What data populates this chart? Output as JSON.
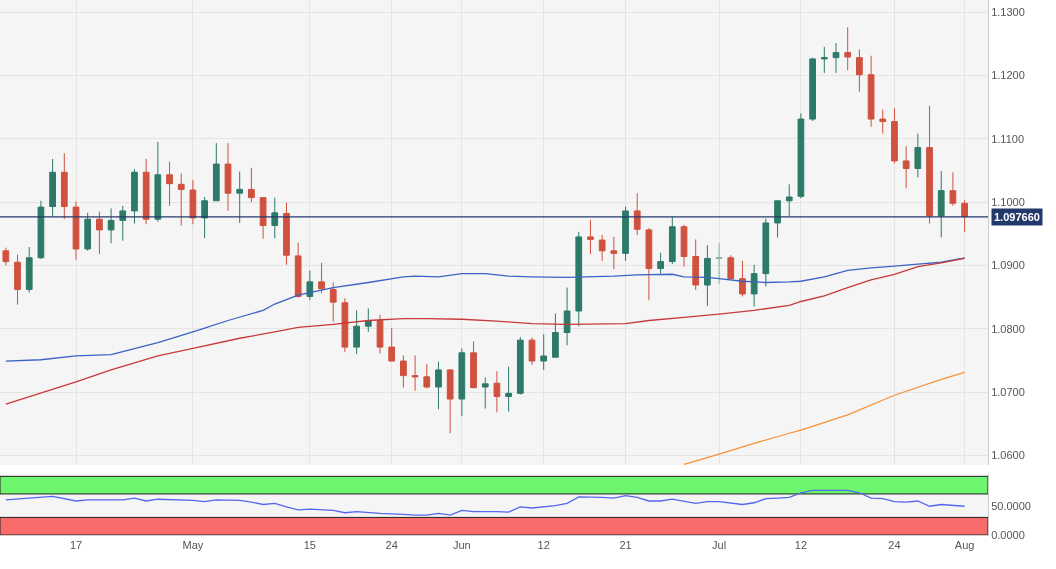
{
  "chart_data": [
    {
      "type": "candlestick",
      "categories": [
        null,
        null,
        null,
        null,
        null,
        null,
        "17",
        null,
        null,
        null,
        null,
        null,
        null,
        null,
        null,
        null,
        "May",
        null,
        null,
        null,
        null,
        null,
        null,
        null,
        null,
        null,
        "15",
        null,
        null,
        null,
        null,
        null,
        null,
        "24",
        null,
        null,
        null,
        null,
        null,
        "Jun",
        null,
        null,
        null,
        null,
        null,
        null,
        "12",
        null,
        null,
        null,
        null,
        null,
        null,
        "21",
        null,
        null,
        null,
        null,
        null,
        null,
        null,
        "Jul",
        null,
        null,
        null,
        null,
        null,
        null,
        "12",
        null,
        null,
        null,
        null,
        null,
        null,
        null,
        "24",
        null,
        null,
        null,
        null,
        null,
        "Aug"
      ],
      "ohlc": [
        [
          1.0923,
          1.0928,
          1.09,
          1.0906
        ],
        [
          1.0905,
          1.0917,
          1.0838,
          1.0862
        ],
        [
          1.0862,
          1.0929,
          1.0857,
          1.0912
        ],
        [
          1.0912,
          1.1002,
          1.091,
          1.0992
        ],
        [
          1.0993,
          1.1068,
          1.0978,
          1.1047
        ],
        [
          1.1047,
          1.1077,
          1.0973,
          1.0993
        ],
        [
          1.0992,
          1.1001,
          1.0909,
          1.0926
        ],
        [
          1.0926,
          1.0983,
          1.0923,
          1.0973
        ],
        [
          1.0973,
          1.0985,
          1.0918,
          1.0956
        ],
        [
          1.0956,
          1.099,
          1.0935,
          1.0971
        ],
        [
          1.0971,
          1.0994,
          1.0939,
          1.0986
        ],
        [
          1.0986,
          1.1052,
          1.0966,
          1.1047
        ],
        [
          1.1047,
          1.1068,
          1.0965,
          1.0973
        ],
        [
          1.0973,
          1.1095,
          1.0969,
          1.1043
        ],
        [
          1.1043,
          1.1064,
          1.0994,
          1.1029
        ],
        [
          1.1028,
          1.1045,
          1.0963,
          1.102
        ],
        [
          1.1019,
          1.1035,
          1.0965,
          1.0975
        ],
        [
          1.0975,
          1.1008,
          1.0943,
          1.1002
        ],
        [
          1.1002,
          1.1093,
          1.1002,
          1.106
        ],
        [
          1.106,
          1.1093,
          1.0986,
          1.1014
        ],
        [
          1.1014,
          1.1048,
          1.0967,
          1.102
        ],
        [
          1.102,
          1.1054,
          1.1,
          1.1007
        ],
        [
          1.1007,
          1.1007,
          1.0942,
          1.0963
        ],
        [
          1.0963,
          1.1007,
          1.0943,
          1.0983
        ],
        [
          1.0982,
          1.0999,
          1.0901,
          1.0916
        ],
        [
          1.0915,
          1.0936,
          1.0849,
          1.0851
        ],
        [
          1.0851,
          1.0892,
          1.0845,
          1.0874
        ],
        [
          1.0874,
          1.0904,
          1.0856,
          1.0863
        ],
        [
          1.0862,
          1.0873,
          1.0811,
          1.0842
        ],
        [
          1.0841,
          1.0848,
          1.0763,
          1.0771
        ],
        [
          1.0771,
          1.0829,
          1.076,
          1.0804
        ],
        [
          1.0804,
          1.0832,
          1.0795,
          1.0813
        ],
        [
          1.0813,
          1.0822,
          1.0761,
          1.0771
        ],
        [
          1.0771,
          1.0801,
          1.0749,
          1.0749
        ],
        [
          1.0749,
          1.0758,
          1.0707,
          1.0726
        ],
        [
          1.0726,
          1.0758,
          1.0702,
          1.0724
        ],
        [
          1.0724,
          1.0744,
          1.0706,
          1.0708
        ],
        [
          1.0708,
          1.0748,
          1.0673,
          1.0735
        ],
        [
          1.0735,
          1.0736,
          1.0635,
          1.0689
        ],
        [
          1.0689,
          1.0769,
          1.0662,
          1.0762
        ],
        [
          1.0762,
          1.078,
          1.0706,
          1.0707
        ],
        [
          1.0708,
          1.0723,
          1.0674,
          1.0713
        ],
        [
          1.0714,
          1.0733,
          1.0668,
          1.0693
        ],
        [
          1.0693,
          1.074,
          1.0669,
          1.0698
        ],
        [
          1.0698,
          1.0787,
          1.0696,
          1.0782
        ],
        [
          1.0782,
          1.0786,
          1.0743,
          1.0749
        ],
        [
          1.0749,
          1.0791,
          1.0735,
          1.0757
        ],
        [
          1.0755,
          1.0824,
          1.0755,
          1.0794
        ],
        [
          1.0794,
          1.0865,
          1.0774,
          1.0828
        ],
        [
          1.0828,
          1.0953,
          1.0804,
          1.0945
        ],
        [
          1.0945,
          1.0972,
          1.0918,
          1.0941
        ],
        [
          1.094,
          1.0948,
          1.0907,
          1.0923
        ],
        [
          1.0923,
          1.0945,
          1.0894,
          1.0919
        ],
        [
          1.0919,
          1.0993,
          1.0907,
          1.0986
        ],
        [
          1.0986,
          1.1014,
          1.0948,
          1.0957
        ],
        [
          1.0956,
          1.0959,
          1.0845,
          1.0895
        ],
        [
          1.0895,
          1.092,
          1.0887,
          1.0906
        ],
        [
          1.0906,
          1.0977,
          1.0902,
          1.0961
        ],
        [
          1.0961,
          1.0964,
          1.0898,
          1.0914
        ],
        [
          1.0914,
          1.0941,
          1.0861,
          1.0869
        ],
        [
          1.0869,
          1.0932,
          1.0836,
          1.0911
        ],
        [
          1.0911,
          1.0935,
          1.0871,
          1.0912
        ],
        [
          1.0912,
          1.0916,
          1.0879,
          1.0879
        ],
        [
          1.0879,
          1.0907,
          1.0851,
          1.0855
        ],
        [
          1.0855,
          1.0901,
          1.0835,
          1.0887
        ],
        [
          1.0887,
          1.0974,
          1.0867,
          1.0967
        ],
        [
          1.0967,
          1.1002,
          1.0944,
          1.1002
        ],
        [
          1.1002,
          1.1028,
          1.0977,
          1.1008
        ],
        [
          1.1009,
          1.114,
          1.1006,
          1.1131
        ],
        [
          1.1131,
          1.1228,
          1.1128,
          1.1226
        ],
        [
          1.1226,
          1.1245,
          1.1204,
          1.1228
        ],
        [
          1.1228,
          1.1251,
          1.1204,
          1.1236
        ],
        [
          1.1236,
          1.1276,
          1.1208,
          1.1229
        ],
        [
          1.1228,
          1.1241,
          1.1174,
          1.1201
        ],
        [
          1.1201,
          1.1231,
          1.1119,
          1.1131
        ],
        [
          1.1131,
          1.1146,
          1.1108,
          1.1127
        ],
        [
          1.1127,
          1.1148,
          1.1061,
          1.1065
        ],
        [
          1.1065,
          1.1088,
          1.1022,
          1.1053
        ],
        [
          1.1053,
          1.1108,
          1.1039,
          1.1086
        ],
        [
          1.1086,
          1.1152,
          1.0966,
          1.0978
        ],
        [
          1.0978,
          1.1049,
          1.0944,
          1.1018
        ],
        [
          1.1018,
          1.1047,
          1.0994,
          1.0998
        ],
        [
          1.0998,
          1.1003,
          1.0953,
          1.0977
        ]
      ],
      "colors": [
        "#cf513e",
        "#cf513e",
        "#2d7a69",
        "#2d7a69",
        "#2d7a69",
        "#cf513e",
        "#cf513e",
        "#2d7a69",
        "#cf513e",
        "#2d7a69",
        "#2d7a69",
        "#2d7a69",
        "#cf513e",
        "#2d7a69",
        "#cf513e",
        "#cf513e",
        "#cf513e",
        "#2d7a69",
        "#2d7a69",
        "#cf513e",
        "#2d7a69",
        "#cf513e",
        "#cf513e",
        "#2d7a69",
        "#cf513e",
        "#cf513e",
        "#2d7a69",
        "#cf513e",
        "#cf513e",
        "#cf513e",
        "#2d7a69",
        "#2d7a69",
        "#cf513e",
        "#cf513e",
        "#cf513e",
        "#cf513e",
        "#cf513e",
        "#2d7a69",
        "#cf513e",
        "#2d7a69",
        "#cf513e",
        "#2d7a69",
        "#cf513e",
        "#2d7a69",
        "#2d7a69",
        "#cf513e",
        "#2d7a69",
        "#2d7a69",
        "#2d7a69",
        "#2d7a69",
        "#cf513e",
        "#cf513e",
        "#cf513e",
        "#2d7a69",
        "#cf513e",
        "#cf513e",
        "#2d7a69",
        "#2d7a69",
        "#cf513e",
        "#cf513e",
        "#2d7a69",
        "#7fb5a5",
        "#cf513e",
        "#cf513e",
        "#2d7a69",
        "#2d7a69",
        "#2d7a69",
        "#2d7a69",
        "#2d7a69",
        "#2d7a69",
        "#2d7a69",
        "#2d7a69",
        "#cf513e",
        "#cf513e",
        "#cf513e",
        "#cf513e",
        "#cf513e",
        "#cf513e",
        "#2d7a69",
        "#cf513e",
        "#2d7a69",
        "#cf513e",
        "#cf513e"
      ],
      "series": [
        {
          "type": "line",
          "color": "#3b63c4",
          "values": [
            1.0749,
            null,
            null,
            1.0751,
            null,
            null,
            1.0757,
            null,
            null,
            1.0759,
            1.0764,
            null,
            null,
            1.0778,
            null,
            null,
            1.0795,
            1.0801,
            null,
            1.0813,
            null,
            null,
            1.0829,
            1.0839,
            null,
            1.0853,
            null,
            null,
            1.0865,
            null,
            null,
            1.0873,
            null,
            null,
            1.0882,
            1.0883,
            null,
            1.0882,
            null,
            1.0887,
            null,
            1.0887,
            null,
            1.0883,
            null,
            1.0882,
            null,
            null,
            1.0881,
            null,
            null,
            null,
            1.0883,
            null,
            1.0885,
            null,
            null,
            1.0886,
            1.0882,
            null,
            1.0881,
            1.0879,
            null,
            1.0875,
            null,
            1.0873,
            null,
            1.0874,
            1.0875,
            null,
            1.0882,
            null,
            1.0892,
            null,
            1.0896,
            null,
            1.0899,
            null,
            1.0902,
            null,
            1.0905,
            null,
            1.0912
          ]
        },
        {
          "type": "line",
          "color": "#c8393a",
          "values": [
            1.0681,
            null,
            null,
            null,
            null,
            null,
            1.0716,
            null,
            null,
            1.0735,
            null,
            null,
            null,
            1.0757,
            null,
            null,
            1.0769,
            null,
            null,
            null,
            1.0785,
            null,
            null,
            1.0795,
            null,
            1.0802,
            null,
            null,
            1.0807,
            null,
            null,
            1.0813,
            null,
            null,
            1.0816,
            null,
            1.0816,
            null,
            null,
            1.0815,
            null,
            null,
            1.0812,
            null,
            null,
            1.0808,
            null,
            null,
            1.0807,
            null,
            null,
            null,
            null,
            1.0808,
            null,
            1.0813,
            null,
            null,
            1.0818,
            null,
            null,
            1.0823,
            null,
            null,
            1.0829,
            null,
            null,
            1.0837,
            1.0843,
            null,
            1.0852,
            null,
            1.0865,
            null,
            1.0877,
            null,
            1.0886,
            null,
            1.0898,
            null,
            1.0904,
            null,
            1.0911
          ]
        },
        {
          "type": "line",
          "color": "#f7923a",
          "values": [
            null,
            null,
            null,
            null,
            null,
            null,
            null,
            null,
            null,
            null,
            null,
            null,
            null,
            null,
            null,
            null,
            null,
            null,
            null,
            null,
            null,
            null,
            null,
            null,
            null,
            null,
            null,
            null,
            null,
            null,
            null,
            null,
            null,
            null,
            null,
            null,
            null,
            null,
            null,
            null,
            null,
            null,
            null,
            null,
            null,
            null,
            null,
            null,
            null,
            null,
            null,
            null,
            null,
            null,
            null,
            null,
            null,
            null,
            1.0586,
            null,
            null,
            1.0602,
            null,
            null,
            1.0619,
            null,
            null,
            1.0635,
            1.064,
            null,
            null,
            null,
            1.0664,
            null,
            null,
            null,
            1.0695,
            null,
            null,
            null,
            1.072,
            null,
            1.0731
          ]
        }
      ],
      "ylim": [
        1.0585,
        1.1319
      ],
      "yticks": [
        {
          "value": 1.06,
          "label": "1.0600"
        },
        {
          "value": 1.07,
          "label": "1.0700"
        },
        {
          "value": 1.08,
          "label": "1.0800"
        },
        {
          "value": 1.09,
          "label": "1.0900"
        },
        {
          "value": 1.1,
          "label": "1.1000"
        },
        {
          "value": 1.11,
          "label": "1.1100"
        },
        {
          "value": 1.12,
          "label": "1.1200"
        },
        {
          "value": 1.13,
          "label": "1.1300"
        }
      ],
      "ref_lines": [
        {
          "axis": "y",
          "value": 1.09766,
          "label": "1.097660",
          "color": "#24396b"
        }
      ],
      "grid": true
    },
    {
      "type": "line",
      "tick_labels": "y",
      "categories": [
        null,
        null,
        null,
        null,
        null,
        null,
        null,
        null,
        null,
        null,
        null,
        null,
        null,
        null,
        null,
        null,
        null,
        null,
        null,
        null,
        null,
        null,
        null,
        null,
        null,
        null,
        null,
        null,
        null,
        null,
        null,
        null,
        null,
        null,
        null,
        null,
        null,
        null,
        null,
        null,
        null,
        null,
        null,
        null,
        null,
        null,
        null,
        null,
        null,
        null,
        null,
        null,
        null,
        null,
        null,
        null,
        null,
        null,
        null,
        null,
        null,
        null,
        null,
        null,
        null,
        null,
        null,
        null,
        null,
        null,
        null,
        null,
        null,
        null,
        null,
        null,
        null,
        null,
        null,
        null,
        null,
        null,
        null
      ],
      "series": [
        {
          "color": "#5566ee",
          "values": [
            60,
            null,
            null,
            null,
            66,
            null,
            58,
            60,
            null,
            null,
            60,
            63,
            58,
            61,
            null,
            null,
            59,
            57,
            60,
            null,
            59,
            56,
            52,
            54,
            48,
            43,
            44,
            null,
            42,
            38,
            40,
            null,
            37,
            null,
            35,
            34,
            34,
            37,
            34,
            42,
            40,
            null,
            40,
            39,
            48,
            46,
            null,
            50,
            54,
            65,
            null,
            64,
            63,
            67,
            64,
            58,
            58,
            61,
            null,
            54,
            57,
            57,
            null,
            52,
            55,
            62,
            63,
            64,
            72,
            76,
            null,
            null,
            76,
            72,
            63,
            62,
            57,
            56,
            58,
            49,
            52,
            null,
            49
          ]
        }
      ],
      "ylim": [
        0,
        104
      ],
      "yticks": [
        {
          "value": 0,
          "label": "0.0000"
        },
        {
          "value": 50,
          "label": "50.0000"
        }
      ],
      "bands": [
        {
          "axis": "y",
          "from": 70,
          "to": 100,
          "color": "#6df56d"
        },
        {
          "axis": "y",
          "from": 0,
          "to": 30,
          "color": "#fa6b6b"
        }
      ]
    }
  ]
}
